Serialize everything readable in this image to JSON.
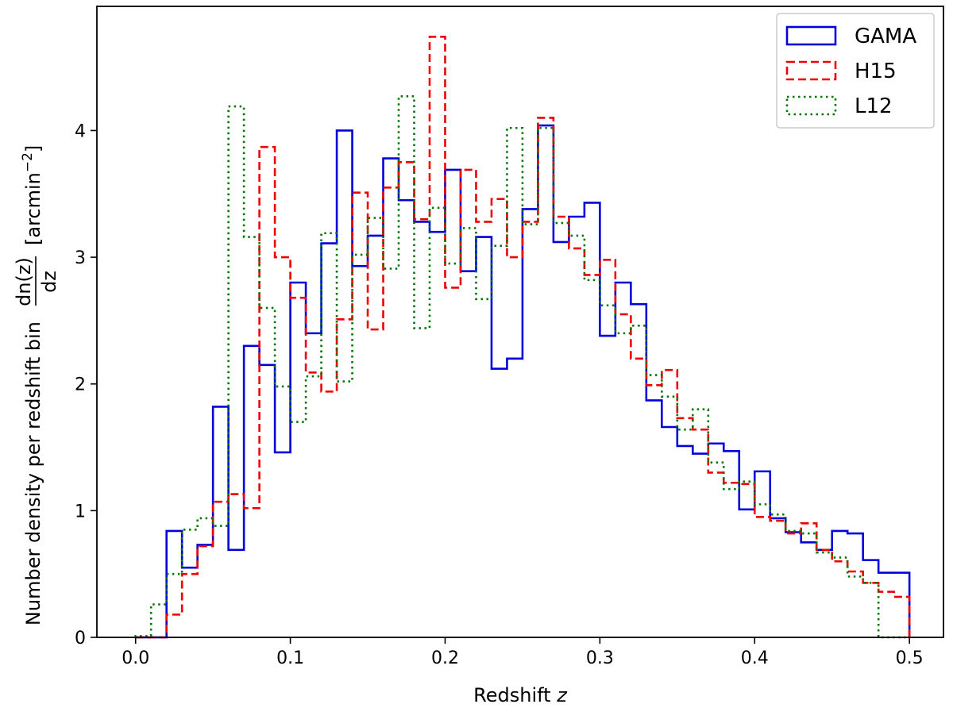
{
  "chart_data": {
    "type": "histogram-step",
    "title": "",
    "xlabel": "Redshift",
    "xlabel_var": "z",
    "ylabel": "Number density per redshift bin",
    "ylabel_fraction_numerator": "dn(z)",
    "ylabel_fraction_denominator": "dz",
    "ylabel_unit": "[arcmin",
    "ylabel_unit_exponent": "−2",
    "ylabel_unit_close": "]",
    "xlim": [
      -0.025,
      0.522
    ],
    "ylim": [
      0,
      4.98
    ],
    "xticks": [
      0.0,
      0.1,
      0.2,
      0.3,
      0.4,
      0.5
    ],
    "xtick_labels": [
      "0.0",
      "0.1",
      "0.2",
      "0.3",
      "0.4",
      "0.5"
    ],
    "yticks": [
      0,
      1,
      2,
      3,
      4
    ],
    "ytick_labels": [
      "0",
      "1",
      "2",
      "3",
      "4"
    ],
    "bin_edges": [
      0.0,
      0.01,
      0.02,
      0.03,
      0.04,
      0.05,
      0.06,
      0.07,
      0.08,
      0.09,
      0.1,
      0.11,
      0.12,
      0.13,
      0.14,
      0.15,
      0.16,
      0.17,
      0.18,
      0.19,
      0.2,
      0.21,
      0.22,
      0.23,
      0.24,
      0.25,
      0.26,
      0.27,
      0.28,
      0.29,
      0.3,
      0.31,
      0.32,
      0.33,
      0.34,
      0.35,
      0.36,
      0.37,
      0.38,
      0.39,
      0.4,
      0.41,
      0.42,
      0.43,
      0.44,
      0.45,
      0.46,
      0.47,
      0.48,
      0.49,
      0.5
    ],
    "legend_position": "top-right",
    "series": [
      {
        "name": "GAMA",
        "color": "#0000dd",
        "linestyle": "solid",
        "values": [
          0.0,
          0.0,
          0.84,
          0.55,
          0.73,
          1.82,
          0.69,
          2.3,
          2.15,
          1.46,
          2.8,
          2.4,
          3.11,
          4.0,
          2.93,
          3.17,
          3.78,
          3.45,
          3.28,
          3.2,
          3.69,
          2.89,
          3.16,
          2.12,
          2.2,
          3.38,
          4.04,
          3.12,
          3.32,
          3.43,
          2.38,
          2.8,
          2.63,
          1.87,
          1.66,
          1.51,
          1.45,
          1.53,
          1.47,
          1.01,
          1.31,
          0.94,
          0.83,
          0.75,
          0.69,
          0.84,
          0.82,
          0.61,
          0.51,
          0.51
        ]
      },
      {
        "name": "H15",
        "color": "#ee0000",
        "linestyle": "dashed",
        "values": [
          0.0,
          0.0,
          0.18,
          0.5,
          0.72,
          1.07,
          1.13,
          1.02,
          3.87,
          3.0,
          2.68,
          2.09,
          1.94,
          2.51,
          3.51,
          2.43,
          3.55,
          3.75,
          3.3,
          4.74,
          2.76,
          3.69,
          3.28,
          3.46,
          3.0,
          3.28,
          4.1,
          3.32,
          3.07,
          2.86,
          2.98,
          2.55,
          2.2,
          1.99,
          2.11,
          1.73,
          1.64,
          1.3,
          1.22,
          1.21,
          0.95,
          0.92,
          0.82,
          0.9,
          0.69,
          0.6,
          0.52,
          0.43,
          0.36,
          0.32
        ]
      },
      {
        "name": "L12",
        "color": "#007700",
        "linestyle": "dotted",
        "values": [
          0.01,
          0.26,
          0.5,
          0.85,
          0.94,
          0.88,
          4.19,
          3.16,
          2.6,
          1.98,
          1.7,
          2.06,
          3.19,
          2.02,
          3.02,
          3.31,
          2.91,
          4.27,
          2.44,
          3.39,
          2.95,
          3.23,
          2.67,
          3.09,
          4.02,
          3.26,
          4.02,
          3.27,
          3.17,
          2.82,
          2.62,
          2.4,
          2.46,
          2.07,
          1.9,
          1.64,
          1.8,
          1.38,
          1.17,
          1.23,
          1.05,
          0.97,
          0.84,
          0.82,
          0.67,
          0.63,
          0.48,
          0.43,
          0.0,
          0.0
        ]
      }
    ]
  }
}
